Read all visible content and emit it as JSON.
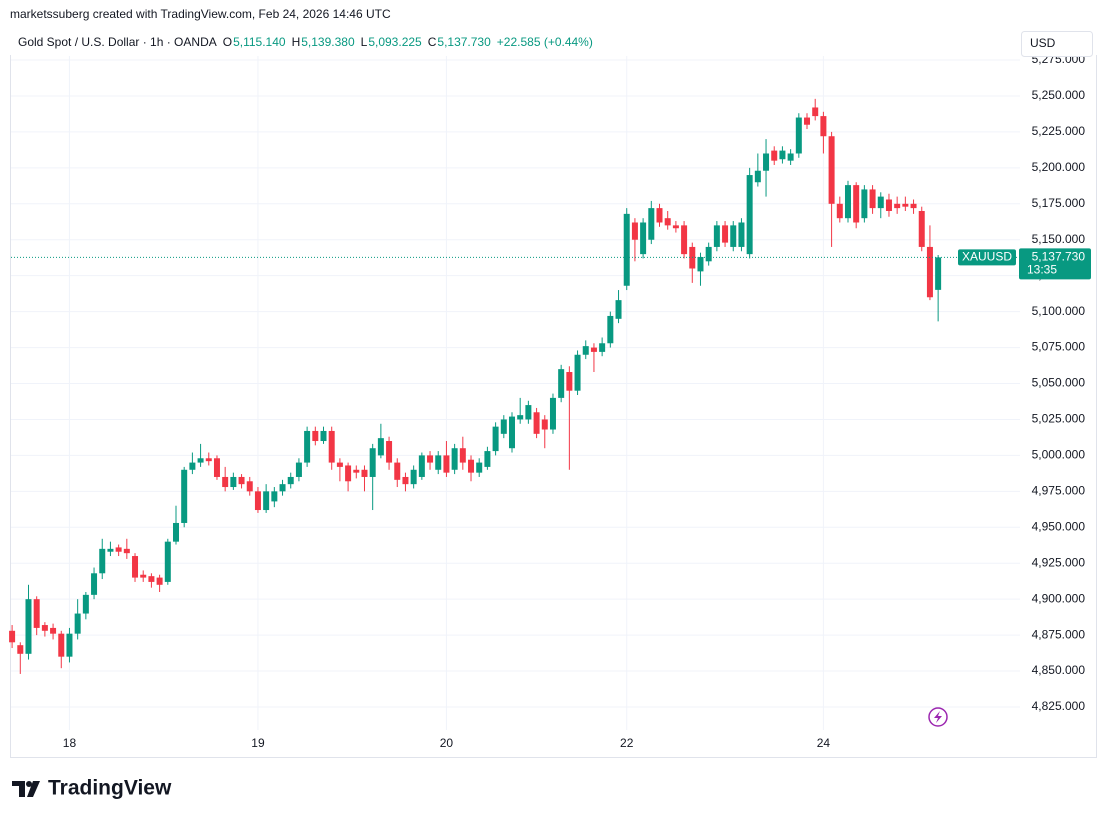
{
  "header": {
    "attribution": "marketssuberg created with TradingView.com, Feb 24, 2026 14:46 UTC",
    "symbol": "Gold Spot / U.S. Dollar · 1h · OANDA",
    "ohlc": [
      {
        "label": "O",
        "value": "5,115.140"
      },
      {
        "label": "H",
        "value": "5,139.380"
      },
      {
        "label": "L",
        "value": "5,093.225"
      },
      {
        "label": "C",
        "value": "5,137.730"
      }
    ],
    "change": "+22.585 (+0.44%)",
    "currency": "USD"
  },
  "chart_data": {
    "type": "candlestick",
    "categories": [
      null,
      null,
      null,
      null,
      null,
      null,
      null,
      "18",
      null,
      null,
      null,
      null,
      null,
      null,
      null,
      null,
      null,
      null,
      null,
      null,
      null,
      null,
      null,
      null,
      null,
      null,
      null,
      null,
      null,
      null,
      "19",
      null,
      null,
      null,
      null,
      null,
      null,
      null,
      null,
      null,
      null,
      null,
      null,
      null,
      null,
      null,
      null,
      null,
      null,
      null,
      null,
      null,
      null,
      "20",
      null,
      null,
      null,
      null,
      null,
      null,
      null,
      null,
      null,
      null,
      null,
      null,
      null,
      null,
      null,
      null,
      null,
      null,
      null,
      null,
      null,
      "22",
      null,
      null,
      null,
      null,
      null,
      null,
      null,
      null,
      null,
      null,
      null,
      null,
      null,
      null,
      null,
      null,
      null,
      null,
      null,
      null,
      null,
      null,
      null,
      "24",
      null,
      null,
      null,
      null,
      null,
      null,
      null,
      null,
      null,
      null,
      null,
      null,
      null,
      null
    ],
    "open": [
      4878,
      4868,
      4862,
      4900,
      4882,
      4880,
      4876,
      4860,
      4876,
      4890,
      4903,
      4918,
      4933,
      4936,
      4935,
      4930,
      4917,
      4916,
      4915,
      4912,
      4940,
      4953,
      4990,
      4995,
      4998,
      4998,
      4985,
      4978,
      4985,
      4982,
      4975,
      4962,
      4968,
      4975,
      4980,
      4985,
      4995,
      5017,
      5010,
      5017,
      4995,
      4993,
      4990,
      4990,
      4985,
      5000,
      5010,
      4995,
      4985,
      4980,
      4985,
      5000,
      4990,
      5000,
      4990,
      5005,
      4997,
      4988,
      4992,
      5003,
      5015,
      5005,
      5025,
      5025,
      5030,
      5025,
      5018,
      5040,
      5058,
      5045,
      5070,
      5075,
      5072,
      5078,
      5095,
      5118,
      5162,
      5140,
      5150,
      5172,
      5165,
      5160,
      5160,
      5145,
      5128,
      5135,
      5145,
      5160,
      5145,
      5145,
      5140,
      5190,
      5198,
      5212,
      5206,
      5205,
      5210,
      5235,
      5242,
      5236,
      5222,
      5175,
      5165,
      5188,
      5165,
      5185,
      5172,
      5178,
      5175,
      5175,
      5175,
      5170,
      5145,
      5115.14
    ],
    "high": [
      4882,
      4870,
      4910,
      4902,
      4884,
      4883,
      4878,
      4880,
      4900,
      4905,
      4922,
      4942,
      4940,
      4938,
      4942,
      4932,
      4920,
      4918,
      4917,
      4942,
      4965,
      4992,
      5002,
      5008,
      5002,
      5000,
      4992,
      4988,
      4987,
      4985,
      4978,
      4980,
      4978,
      4983,
      4988,
      4998,
      5020,
      5020,
      5020,
      5020,
      4998,
      4995,
      4993,
      4993,
      5008,
      5022,
      5013,
      4998,
      4988,
      4993,
      5002,
      5003,
      5003,
      5010,
      5008,
      5013,
      5000,
      4998,
      5006,
      5023,
      5028,
      5030,
      5040,
      5038,
      5033,
      5028,
      5043,
      5063,
      5062,
      5073,
      5080,
      5078,
      5082,
      5100,
      5115,
      5172,
      5165,
      5165,
      5177,
      5175,
      5170,
      5163,
      5163,
      5148,
      5141,
      5148,
      5163,
      5163,
      5163,
      5165,
      5200,
      5210,
      5220,
      5215,
      5215,
      5213,
      5238,
      5238,
      5248,
      5239,
      5225,
      5180,
      5191,
      5190,
      5188,
      5188,
      5183,
      5182,
      5180,
      5180,
      5178,
      5173,
      5160,
      5139.38
    ],
    "low": [
      4866,
      4848,
      4858,
      4875,
      4874,
      4872,
      4852,
      4856,
      4872,
      4886,
      4900,
      4914,
      4930,
      4930,
      4928,
      4912,
      4912,
      4908,
      4905,
      4910,
      4938,
      4950,
      4987,
      4992,
      4993,
      4983,
      4975,
      4976,
      4977,
      4972,
      4960,
      4960,
      4964,
      4972,
      4977,
      4982,
      4992,
      5007,
      5008,
      4990,
      4982,
      4975,
      4984,
      4975,
      4962,
      4998,
      4990,
      4978,
      4975,
      4977,
      4983,
      4990,
      4987,
      4985,
      4987,
      4990,
      4982,
      4985,
      4990,
      5000,
      5012,
      5002,
      5022,
      5022,
      5012,
      5005,
      5015,
      5037,
      4990,
      5042,
      5067,
      5058,
      5069,
      5075,
      5092,
      5115,
      5135,
      5137,
      5147,
      5159,
      5157,
      5155,
      5137,
      5120,
      5118,
      5132,
      5142,
      5145,
      5142,
      5142,
      5137,
      5187,
      5180,
      5202,
      5203,
      5202,
      5207,
      5227,
      5233,
      5210,
      5145,
      5162,
      5162,
      5158,
      5162,
      5168,
      5165,
      5166,
      5168,
      5170,
      5168,
      5142,
      5108,
      5093.225
    ],
    "close": [
      4870,
      4862,
      4900,
      4880,
      4878,
      4876,
      4860,
      4876,
      4890,
      4903,
      4918,
      4935,
      4935,
      4933,
      4932,
      4915,
      4915,
      4912,
      4910,
      4940,
      4953,
      4990,
      4995,
      4998,
      4996,
      4985,
      4978,
      4985,
      4980,
      4975,
      4962,
      4975,
      4975,
      4980,
      4985,
      4995,
      5017,
      5010,
      5017,
      4995,
      4992,
      4982,
      4988,
      4985,
      5005,
      5012,
      4995,
      4983,
      4980,
      4990,
      5000,
      4995,
      5000,
      4988,
      5005,
      4995,
      4988,
      4995,
      5003,
      5020,
      5025,
      5027,
      5028,
      5035,
      5015,
      5018,
      5040,
      5060,
      5045,
      5070,
      5076,
      5072,
      5078,
      5097,
      5108,
      5168,
      5150,
      5162,
      5172,
      5162,
      5160,
      5158,
      5140,
      5130,
      5138,
      5145,
      5160,
      5148,
      5160,
      5162,
      5195,
      5198,
      5210,
      5205,
      5212,
      5210,
      5235,
      5230,
      5236,
      5222,
      5175,
      5165,
      5188,
      5162,
      5185,
      5172,
      5180,
      5170,
      5172,
      5173,
      5172,
      5145,
      5110,
      5137.73
    ],
    "up_color": "#089981",
    "down_color": "#f23645",
    "ylim": [
      4809,
      5278.5
    ],
    "yticks": [
      {
        "value": 4825,
        "label": "4,825.000"
      },
      {
        "value": 4850,
        "label": "4,850.000"
      },
      {
        "value": 4875,
        "label": "4,875.000"
      },
      {
        "value": 4900,
        "label": "4,900.000"
      },
      {
        "value": 4925,
        "label": "4,925.000"
      },
      {
        "value": 4950,
        "label": "4,950.000"
      },
      {
        "value": 4975,
        "label": "4,975.000"
      },
      {
        "value": 5000,
        "label": "5,000.000"
      },
      {
        "value": 5025,
        "label": "5,025.000"
      },
      {
        "value": 5050,
        "label": "5,050.000"
      },
      {
        "value": 5075,
        "label": "5,075.000"
      },
      {
        "value": 5100,
        "label": "5,100.000"
      },
      {
        "value": 5125,
        "label": "5,125.000"
      },
      {
        "value": 5150,
        "label": "5,150.000"
      },
      {
        "value": 5175,
        "label": "5,175.000"
      },
      {
        "value": 5200,
        "label": "5,200.000"
      },
      {
        "value": 5225,
        "label": "5,225.000"
      },
      {
        "value": 5250,
        "label": "5,250.000"
      },
      {
        "value": 5275,
        "label": "5,275.000"
      }
    ],
    "grid": true,
    "price_tag": {
      "symbol": "XAUUSD",
      "price": "5,137.730",
      "countdown": "13:35"
    }
  },
  "footer": {
    "logo_text": "TradingView"
  }
}
